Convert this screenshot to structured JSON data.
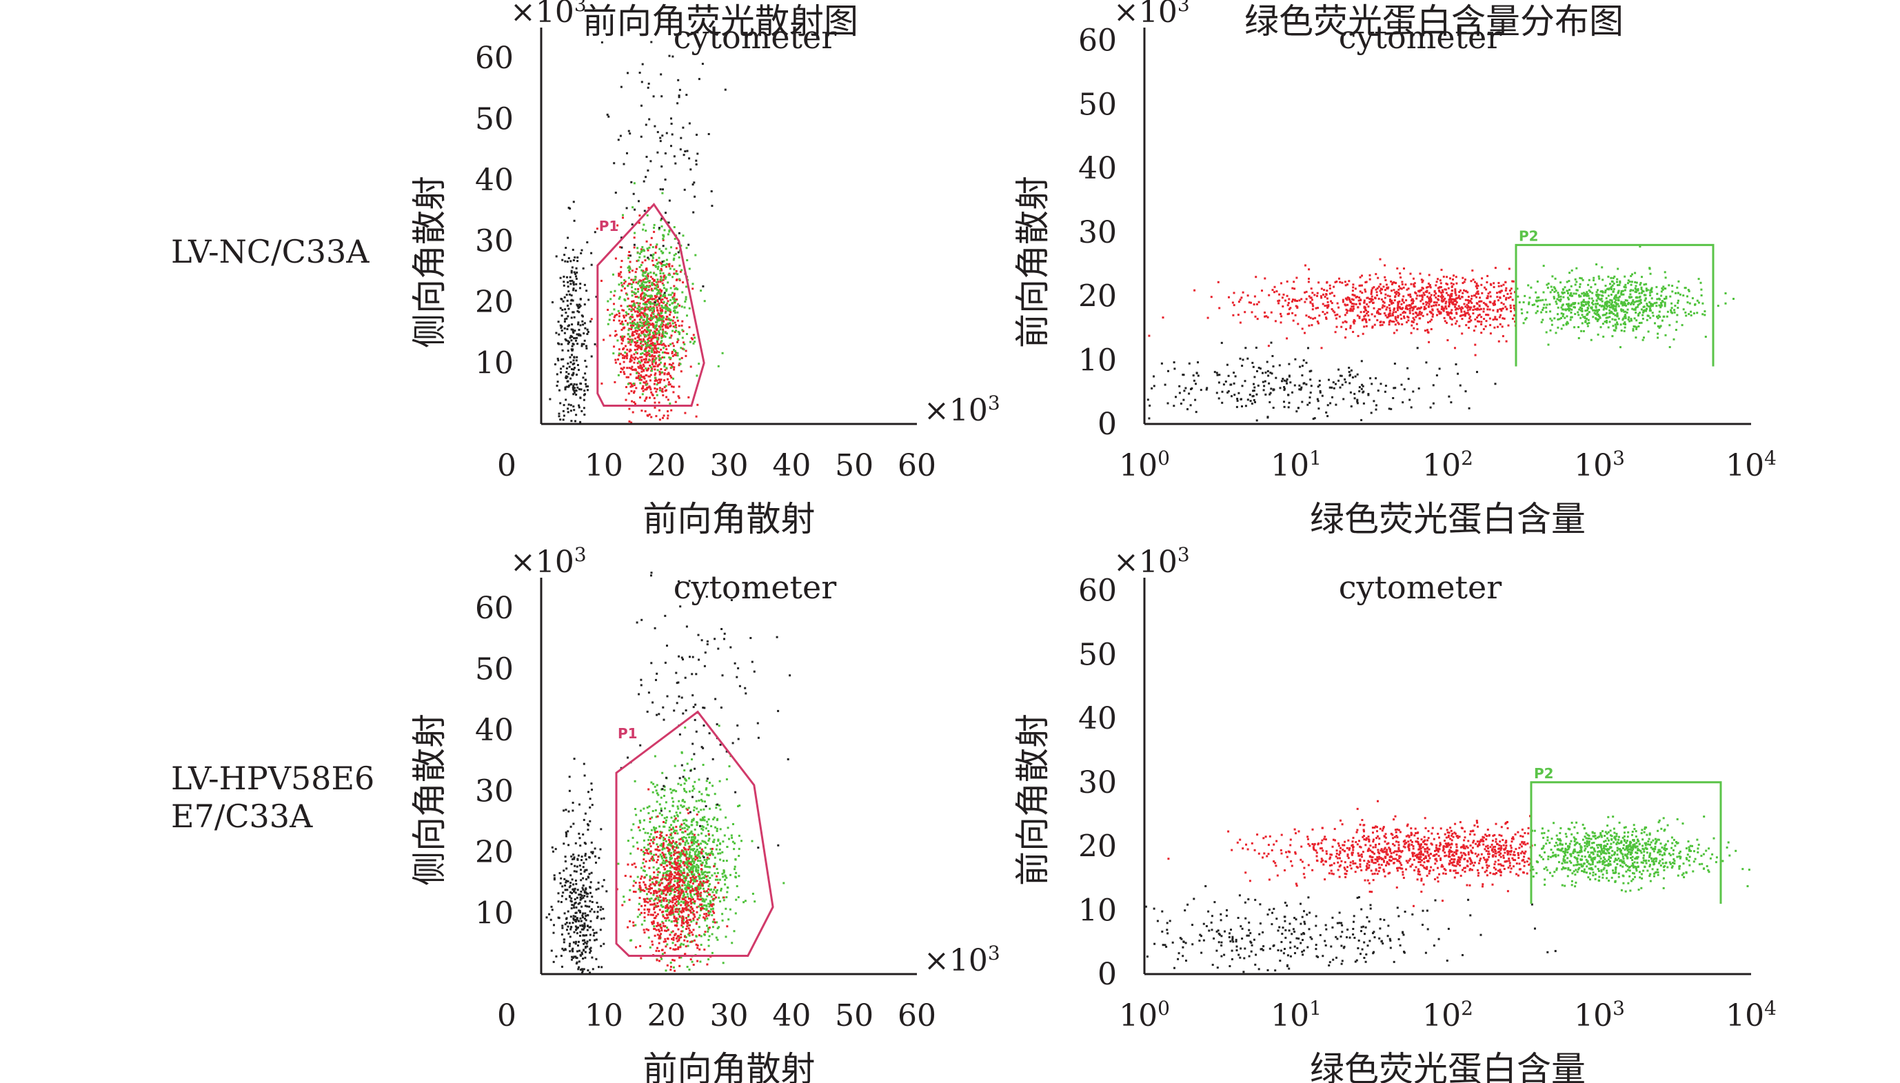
{
  "column_titles": [
    "前向角荧光散射图",
    "绿色荧光蛋白含量分布图"
  ],
  "row_labels": [
    [
      "LV-NC/C33A"
    ],
    [
      "LV-HPV58E6",
      "E7/C33A"
    ]
  ],
  "colors": {
    "ungated": "#222222",
    "red": "#e8232d",
    "green": "#4fc23b",
    "gate_red": "#d13a6a",
    "gate_green": "#5bc449"
  },
  "chart_data": [
    {
      "type": "scatter",
      "panel": "row1-left",
      "annotation": "cytometer",
      "xlabel": "前向角散射",
      "ylabel": "侧向角散射",
      "x_multiplier": "×10³",
      "y_multiplier": "×10³",
      "x_ticks": [
        "0",
        "10",
        "20",
        "30",
        "40",
        "50",
        "60"
      ],
      "y_ticks": [
        "10",
        "20",
        "30",
        "40",
        "50",
        "60"
      ],
      "xlim": [
        0,
        60
      ],
      "ylim": [
        0,
        65
      ],
      "gate": {
        "name": "P1",
        "polygon": [
          [
            9,
            5
          ],
          [
            9,
            26
          ],
          [
            18,
            36
          ],
          [
            22,
            30
          ],
          [
            26,
            10
          ],
          [
            24,
            3
          ],
          [
            10,
            3
          ]
        ]
      },
      "populations": [
        {
          "name": "",
          "color": "red",
          "center": [
            17,
            15
          ],
          "spread": [
            2.6,
            6.5
          ],
          "count": 900
        },
        {
          "name": "",
          "color": "green",
          "center": [
            18,
            20
          ],
          "spread": [
            3.0,
            6.0
          ],
          "count": 500
        },
        {
          "name": "",
          "color": "ungated",
          "center": [
            5,
            12
          ],
          "spread": [
            1.4,
            10.0
          ],
          "count": 320
        },
        {
          "name": "",
          "color": "ungated",
          "center": [
            19,
            45
          ],
          "spread": [
            4.0,
            10.0
          ],
          "count": 110
        }
      ]
    },
    {
      "type": "scatter",
      "panel": "row1-right",
      "annotation": "cytometer",
      "xlabel": "绿色荧光蛋白含量",
      "ylabel": "前向角散射",
      "y_multiplier": "×10³",
      "x_ticks": [
        {
          "base": "10",
          "exp": "0"
        },
        {
          "base": "10",
          "exp": "1"
        },
        {
          "base": "10",
          "exp": "2"
        },
        {
          "base": "10",
          "exp": "3"
        },
        {
          "base": "10",
          "exp": "4"
        }
      ],
      "y_ticks": [
        "0",
        "10",
        "20",
        "30",
        "40",
        "50",
        "60"
      ],
      "x_scale": "log",
      "xlim_log10": [
        0,
        4
      ],
      "ylim": [
        0,
        62
      ],
      "gate": {
        "name": "P2",
        "x_log10": [
          2.45,
          3.75
        ],
        "y": [
          9,
          28
        ]
      },
      "populations": [
        {
          "name": "",
          "color": "red",
          "center": [
            1.8,
            19
          ],
          "spread": [
            0.55,
            2.2
          ],
          "count": 1100
        },
        {
          "name": "",
          "color": "green",
          "center": [
            3.05,
            19
          ],
          "spread": [
            0.28,
            2.2
          ],
          "count": 750
        },
        {
          "name": "",
          "color": "ungated",
          "center": [
            0.9,
            6
          ],
          "spread": [
            0.55,
            2.4
          ],
          "count": 300
        }
      ]
    },
    {
      "type": "scatter",
      "panel": "row2-left",
      "annotation": "cytometer",
      "xlabel": "前向角散射",
      "ylabel": "侧向角散射",
      "x_multiplier": "×10³",
      "y_multiplier": "×10³",
      "x_ticks": [
        "0",
        "10",
        "20",
        "30",
        "40",
        "50",
        "60"
      ],
      "y_ticks": [
        "10",
        "20",
        "30",
        "40",
        "50",
        "60"
      ],
      "xlim": [
        0,
        60
      ],
      "ylim": [
        0,
        65
      ],
      "gate": {
        "name": "P1",
        "polygon": [
          [
            12,
            5
          ],
          [
            12,
            33
          ],
          [
            25,
            43
          ],
          [
            34,
            31
          ],
          [
            37,
            11
          ],
          [
            33,
            3
          ],
          [
            14,
            3
          ]
        ]
      },
      "populations": [
        {
          "name": "",
          "color": "green",
          "center": [
            23,
            18
          ],
          "spread": [
            3.8,
            7.0
          ],
          "count": 1000
        },
        {
          "name": "",
          "color": "red",
          "center": [
            21,
            13
          ],
          "spread": [
            3.0,
            5.5
          ],
          "count": 700
        },
        {
          "name": "",
          "color": "ungated",
          "center": [
            6,
            10
          ],
          "spread": [
            1.8,
            9.0
          ],
          "count": 420
        },
        {
          "name": "",
          "color": "ungated",
          "center": [
            24,
            45
          ],
          "spread": [
            6.0,
            11.0
          ],
          "count": 130
        }
      ]
    },
    {
      "type": "scatter",
      "panel": "row2-right",
      "annotation": "cytometer",
      "xlabel": "绿色荧光蛋白含量",
      "ylabel": "前向角散射",
      "y_multiplier": "×10³",
      "x_ticks": [
        {
          "base": "10",
          "exp": "0"
        },
        {
          "base": "10",
          "exp": "1"
        },
        {
          "base": "10",
          "exp": "2"
        },
        {
          "base": "10",
          "exp": "3"
        },
        {
          "base": "10",
          "exp": "4"
        }
      ],
      "y_ticks": [
        "0",
        "10",
        "20",
        "30",
        "40",
        "50",
        "60"
      ],
      "x_scale": "log",
      "xlim_log10": [
        0,
        4
      ],
      "ylim": [
        0,
        62
      ],
      "gate": {
        "name": "P2",
        "x_log10": [
          2.55,
          3.8
        ],
        "y": [
          11,
          30
        ]
      },
      "populations": [
        {
          "name": "",
          "color": "red",
          "center": [
            1.9,
            19
          ],
          "spread": [
            0.55,
            2.2
          ],
          "count": 1100
        },
        {
          "name": "",
          "color": "green",
          "center": [
            3.1,
            19
          ],
          "spread": [
            0.3,
            2.2
          ],
          "count": 800
        },
        {
          "name": "",
          "color": "ungated",
          "center": [
            0.9,
            6
          ],
          "spread": [
            0.6,
            2.6
          ],
          "count": 320
        }
      ]
    }
  ]
}
